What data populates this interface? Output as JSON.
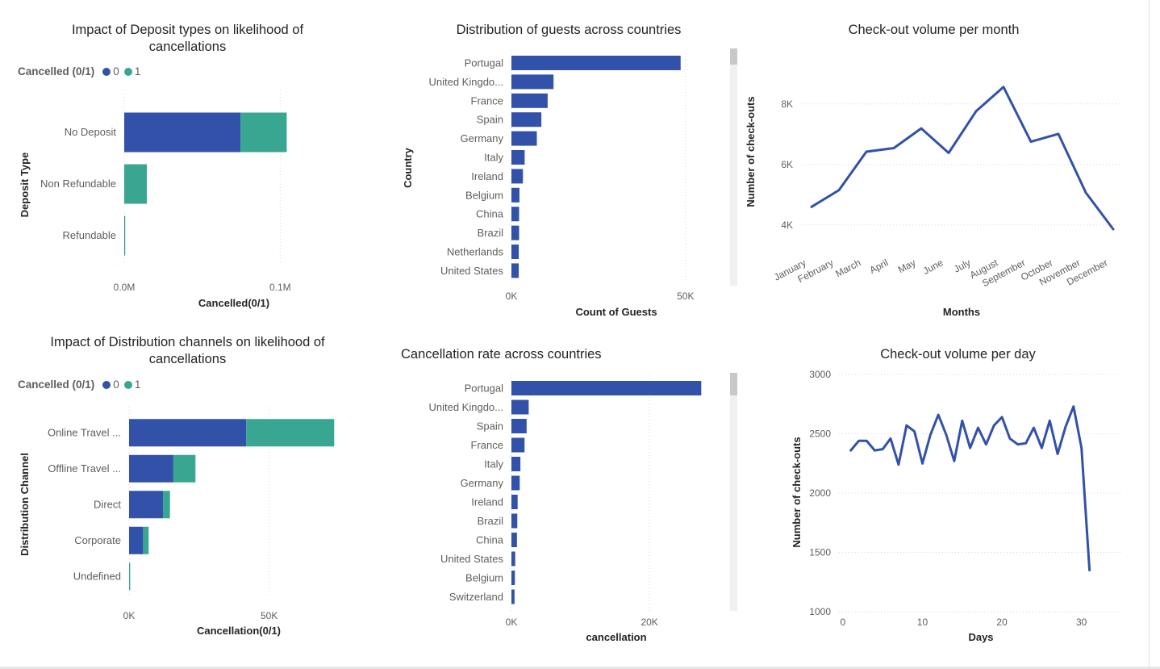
{
  "colors": {
    "series0": "#3152a8",
    "series1": "#39a692",
    "line": "#3152a8",
    "grid": "#d6d6d6",
    "axisText": "#605e5c",
    "labelText": "#252423"
  },
  "chart_data": [
    {
      "id": "deposit",
      "type": "bar",
      "stacked": true,
      "orientation": "horizontal",
      "title": "Impact of Deposit types on likelihood of cancellations",
      "legend_title": "Cancelled (0/1)",
      "categories": [
        "No Deposit",
        "Non Refundable",
        "Refundable"
      ],
      "series": [
        {
          "name": "0",
          "values": [
            74500,
            0,
            120
          ]
        },
        {
          "name": "1",
          "values": [
            29700,
            14500,
            40
          ]
        }
      ],
      "xlabel": "Cancelled(0/1)",
      "ylabel": "Deposit Type",
      "xlim": [
        0,
        120000
      ],
      "xticks": [
        {
          "v": 0,
          "label": "0.0M"
        },
        {
          "v": 100000,
          "label": "0.1M"
        }
      ],
      "grid": true
    },
    {
      "id": "channels",
      "type": "bar",
      "stacked": true,
      "orientation": "horizontal",
      "title": "Impact of Distribution channels on likelihood of cancellations",
      "legend_title": "Cancelled (0/1)",
      "categories": [
        "Online Travel ...",
        "Offline Travel ...",
        "Direct",
        "Corporate",
        "Undefined"
      ],
      "series": [
        {
          "name": "0",
          "values": [
            41800,
            15800,
            12100,
            5000,
            0
          ]
        },
        {
          "name": "1",
          "values": [
            31400,
            7900,
            2500,
            2000,
            400
          ]
        }
      ],
      "xlabel": "Cancellation(0/1)",
      "ylabel": "Distribution Channel",
      "xlim": [
        0,
        76000
      ],
      "xticks": [
        {
          "v": 0,
          "label": "0K"
        },
        {
          "v": 50000,
          "label": "50K"
        }
      ],
      "grid": true
    },
    {
      "id": "guests",
      "type": "bar",
      "orientation": "horizontal",
      "title": "Distribution of guests across countries",
      "categories": [
        "Portugal",
        "United Kingdo...",
        "France",
        "Spain",
        "Germany",
        "Italy",
        "Ireland",
        "Belgium",
        "China",
        "Brazil",
        "Netherlands",
        "United States"
      ],
      "values": [
        48600,
        12100,
        10400,
        8600,
        7300,
        3800,
        3300,
        2300,
        2200,
        2200,
        2100,
        2100
      ],
      "xlabel": "Count of Guests",
      "ylabel": "Country",
      "xlim": [
        0,
        57000
      ],
      "xticks": [
        {
          "v": 0,
          "label": "0K"
        },
        {
          "v": 50000,
          "label": "50K"
        }
      ],
      "grid": true
    },
    {
      "id": "cancelrate",
      "type": "bar",
      "orientation": "horizontal",
      "title": "Cancellation rate across countries",
      "categories": [
        "Portugal",
        "United Kingdo...",
        "Spain",
        "France",
        "Italy",
        "Germany",
        "Ireland",
        "Brazil",
        "China",
        "United States",
        "Belgium",
        "Switzerland"
      ],
      "values": [
        27500,
        2500,
        2200,
        1900,
        1300,
        1200,
        900,
        850,
        800,
        550,
        500,
        450
      ],
      "xlabel": "cancellation",
      "xlim": [
        0,
        30500
      ],
      "xticks": [
        {
          "v": 0,
          "label": "0K"
        },
        {
          "v": 20000,
          "label": "20K"
        }
      ],
      "grid": true
    },
    {
      "id": "monthly",
      "type": "line",
      "title": "Check-out volume per month",
      "categories": [
        "January",
        "February",
        "March",
        "April",
        "May",
        "June",
        "July",
        "August",
        "September",
        "October",
        "November",
        "December"
      ],
      "values": [
        4600,
        5150,
        6420,
        6540,
        7190,
        6380,
        7760,
        8560,
        6750,
        7010,
        5070,
        3860
      ],
      "xlabel": "Months",
      "ylabel": "Number of check-outs",
      "ylim": [
        3700,
        8900
      ],
      "yticks": [
        {
          "v": 4000,
          "label": "4K"
        },
        {
          "v": 6000,
          "label": "6K"
        },
        {
          "v": 8000,
          "label": "8K"
        }
      ],
      "grid": true
    },
    {
      "id": "daily",
      "type": "line",
      "title": "Check-out volume per day",
      "x": [
        1,
        2,
        3,
        4,
        5,
        6,
        7,
        8,
        9,
        10,
        11,
        12,
        13,
        14,
        15,
        16,
        17,
        18,
        19,
        20,
        21,
        22,
        23,
        24,
        25,
        26,
        27,
        28,
        29,
        30,
        31
      ],
      "values": [
        2360,
        2440,
        2440,
        2360,
        2370,
        2460,
        2240,
        2570,
        2520,
        2250,
        2490,
        2660,
        2490,
        2270,
        2610,
        2380,
        2550,
        2410,
        2570,
        2640,
        2460,
        2410,
        2420,
        2550,
        2380,
        2610,
        2330,
        2560,
        2730,
        2380,
        1350
      ],
      "xlabel": "Days",
      "ylabel": "Number of check-outs",
      "xlim": [
        -1,
        35
      ],
      "ylim": [
        1000,
        3000
      ],
      "xticks": [
        {
          "v": 0,
          "label": "0"
        },
        {
          "v": 10,
          "label": "10"
        },
        {
          "v": 20,
          "label": "20"
        },
        {
          "v": 30,
          "label": "30"
        }
      ],
      "yticks": [
        {
          "v": 1000,
          "label": "1000"
        },
        {
          "v": 1500,
          "label": "1500"
        },
        {
          "v": 2000,
          "label": "2000"
        },
        {
          "v": 2500,
          "label": "2500"
        },
        {
          "v": 3000,
          "label": "3000"
        }
      ],
      "grid": true
    }
  ]
}
